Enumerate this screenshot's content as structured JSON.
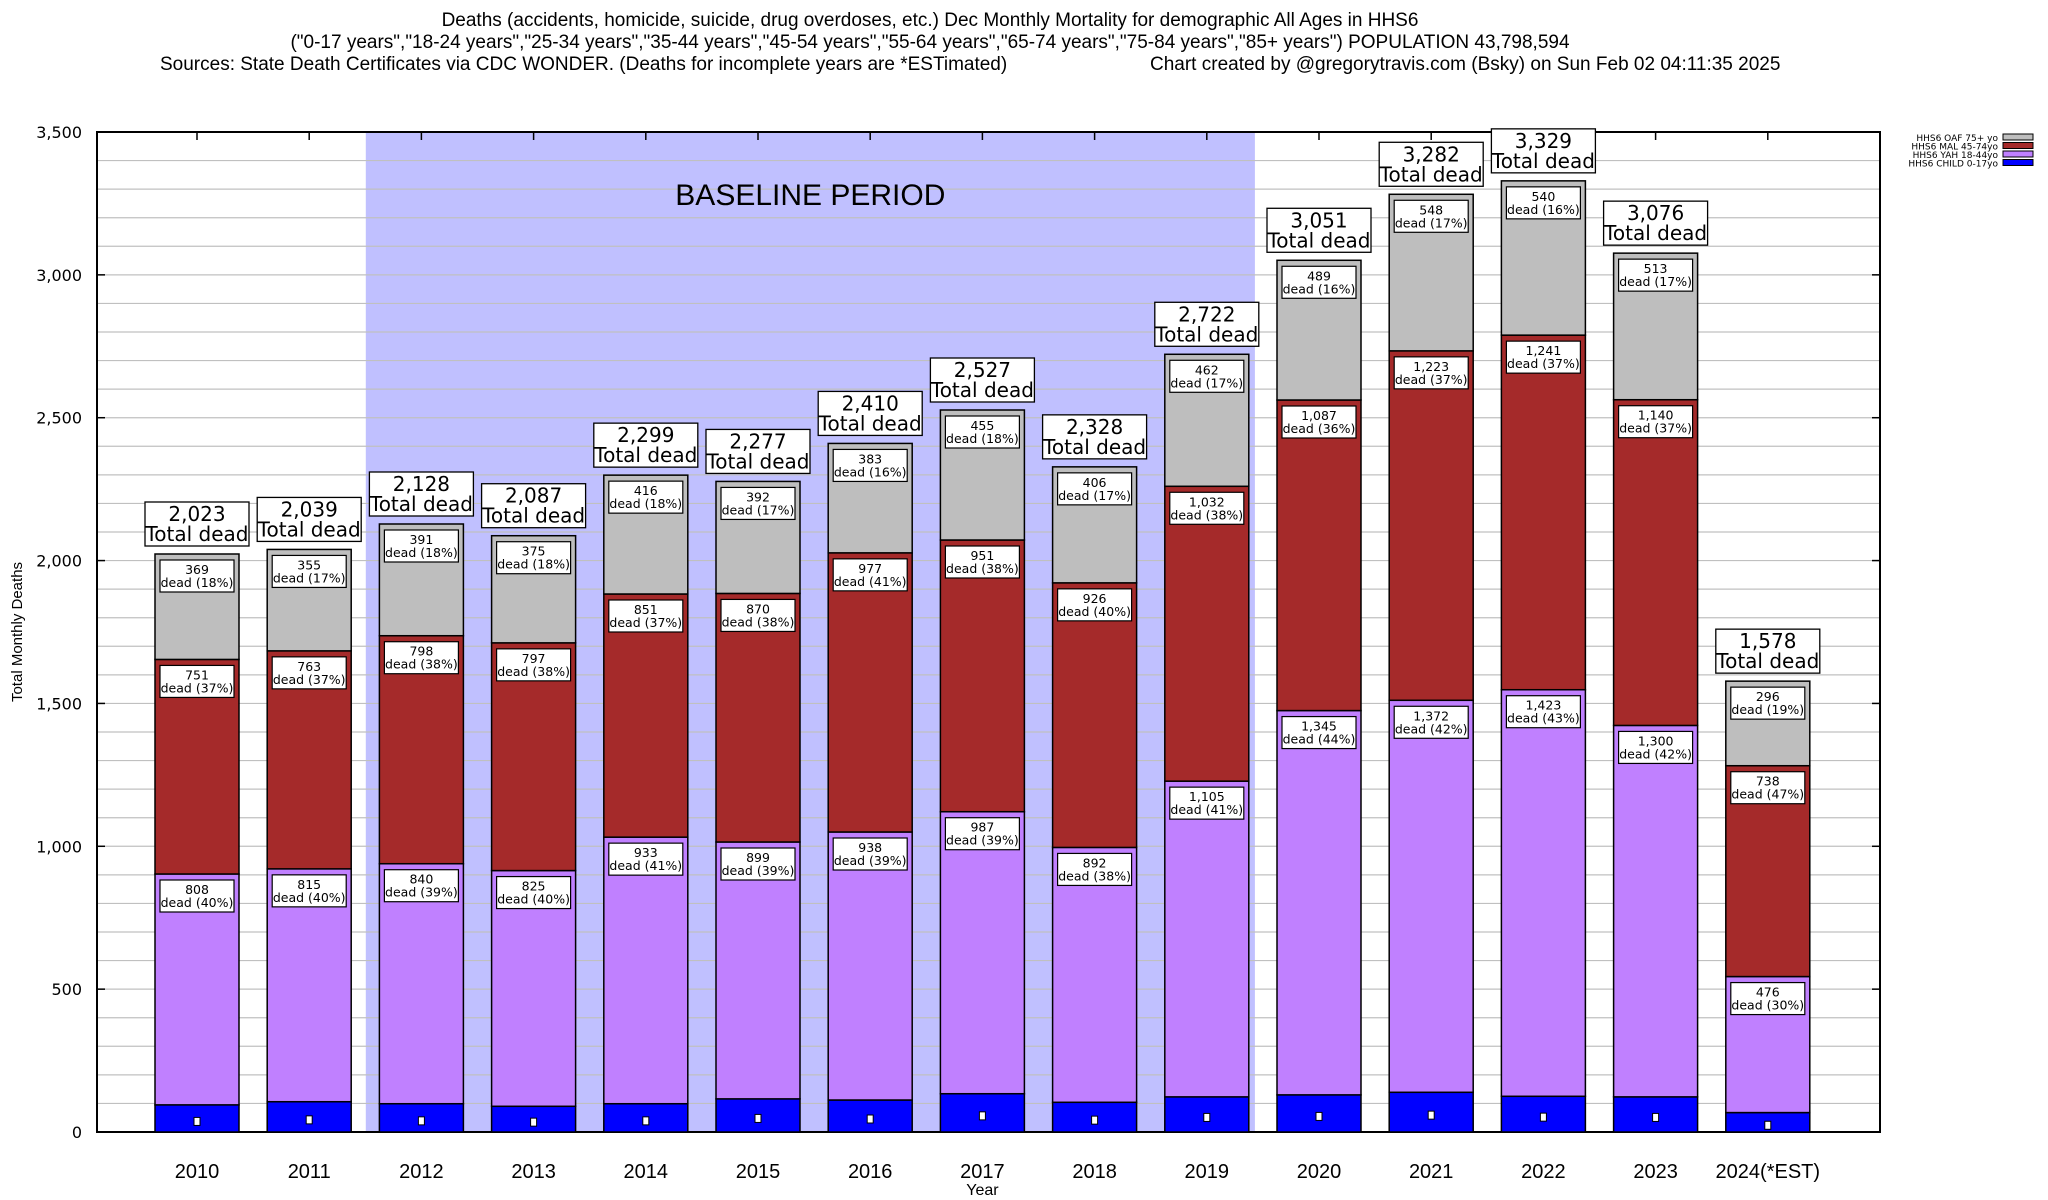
{
  "header": {
    "line1": "Deaths (accidents, homicide, suicide, drug overdoses, etc.) Dec Monthly Mortality for demographic All Ages in HHS6",
    "line2": "(\"0-17 years\",\"18-24 years\",\"25-34 years\",\"35-44 years\",\"45-54 years\",\"55-64 years\",\"65-74 years\",\"75-84 years\",\"85+ years\") POPULATION 43,798,594",
    "line3_left": "Sources: State Death Certificates via CDC WONDER. (Deaths for incomplete years are *ESTimated)",
    "line3_right": "Chart created by @gregorytravis.com (Bsky) on Sun Feb 02 04:11:35 2025"
  },
  "colors": {
    "oaf": "#bebebe",
    "mal": "#a52a2a",
    "yah": "#c080ff",
    "child": "#0000ff",
    "baseline": "#c0c0ff",
    "grid": "#c0c0c0"
  },
  "chart_data": {
    "type": "bar",
    "stacked": true,
    "xlabel": "Year",
    "ylabel": "Total Monthly Deaths",
    "ylim": [
      0,
      3500
    ],
    "yticks": [
      0,
      500,
      1000,
      1500,
      2000,
      2500,
      3000,
      3500
    ],
    "ytick_labels": [
      "0",
      "500",
      "1,000",
      "1,500",
      "2,000",
      "2,500",
      "3,000",
      "3,500"
    ],
    "grid": true,
    "legend_position": "top-right",
    "annotation": "BASELINE PERIOD",
    "baseline_range": [
      "2012",
      "2019"
    ],
    "total_suffix": "Total dead",
    "categories": [
      "2010",
      "2011",
      "2012",
      "2013",
      "2014",
      "2015",
      "2016",
      "2017",
      "2018",
      "2019",
      "2020",
      "2021",
      "2022",
      "2023",
      "2024(*EST)"
    ],
    "totals": [
      2023,
      2039,
      2128,
      2087,
      2299,
      2277,
      2410,
      2527,
      2328,
      2722,
      3051,
      3282,
      3329,
      3076,
      1578
    ],
    "total_labels": [
      "2,023",
      "2,039",
      "2,128",
      "2,087",
      "2,299",
      "2,277",
      "2,410",
      "2,527",
      "2,328",
      "2,722",
      "3,051",
      "3,282",
      "3,329",
      "3,076",
      "1,578"
    ],
    "series": [
      {
        "key": "child",
        "name": "HHS6 CHILD 0-17yo",
        "values": [
          95,
          106,
          99,
          90,
          99,
          116,
          112,
          134,
          104,
          123,
          130,
          139,
          125,
          123,
          68
        ]
      },
      {
        "key": "yah",
        "name": "HHS6 YAH 18-44yo",
        "values": [
          808,
          815,
          840,
          825,
          933,
          899,
          938,
          987,
          892,
          1105,
          1345,
          1372,
          1423,
          1300,
          476
        ],
        "labels": [
          "808\ndead (40%)",
          "815\ndead (40%)",
          "840\ndead (39%)",
          "825\ndead (40%)",
          "933\ndead (41%)",
          "899\ndead (39%)",
          "938\ndead (39%)",
          "987\ndead (39%)",
          "892\ndead (38%)",
          "1,105\ndead (41%)",
          "1,345\ndead (44%)",
          "1,372\ndead (42%)",
          "1,423\ndead (43%)",
          "1,300\ndead (42%)",
          "476\ndead (30%)"
        ]
      },
      {
        "key": "mal",
        "name": "HHS6 MAL 45-74yo",
        "values": [
          751,
          763,
          798,
          797,
          851,
          870,
          977,
          951,
          926,
          1032,
          1087,
          1223,
          1241,
          1140,
          738
        ],
        "labels": [
          "751\ndead (37%)",
          "763\ndead (37%)",
          "798\ndead (38%)",
          "797\ndead (38%)",
          "851\ndead (37%)",
          "870\ndead (38%)",
          "977\ndead (41%)",
          "951\ndead (38%)",
          "926\ndead (40%)",
          "1,032\ndead (38%)",
          "1,087\ndead (36%)",
          "1,223\ndead (37%)",
          "1,241\ndead (37%)",
          "1,140\ndead (37%)",
          "738\ndead (47%)"
        ]
      },
      {
        "key": "oaf",
        "name": "HHS6 OAF 75+ yo",
        "values": [
          369,
          355,
          391,
          375,
          416,
          392,
          383,
          455,
          406,
          462,
          489,
          548,
          540,
          513,
          296
        ],
        "labels": [
          "369\ndead (18%)",
          "355\ndead (17%)",
          "391\ndead (18%)",
          "375\ndead (18%)",
          "416\ndead (18%)",
          "392\ndead (17%)",
          "383\ndead (16%)",
          "455\ndead (18%)",
          "406\ndead (17%)",
          "462\ndead (17%)",
          "489\ndead (16%)",
          "548\ndead (17%)",
          "540\ndead (16%)",
          "513\ndead (17%)",
          "296\ndead (19%)"
        ]
      }
    ],
    "legend_order": [
      "oaf",
      "mal",
      "yah",
      "child"
    ]
  }
}
